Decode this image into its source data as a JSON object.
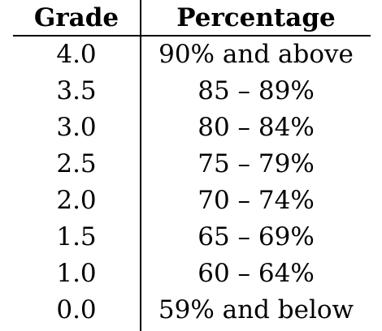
{
  "table": {
    "headers": {
      "grade": "Grade",
      "percentage": "Percentage"
    },
    "rows": [
      {
        "grade": "4.0",
        "percentage": "90% and above"
      },
      {
        "grade": "3.5",
        "percentage": "85 – 89%"
      },
      {
        "grade": "3.0",
        "percentage": "80 – 84%"
      },
      {
        "grade": "2.5",
        "percentage": "75 – 79%"
      },
      {
        "grade": "2.0",
        "percentage": "70 – 74%"
      },
      {
        "grade": "1.5",
        "percentage": "65 – 69%"
      },
      {
        "grade": "1.0",
        "percentage": "60 – 64%"
      },
      {
        "grade": "0.0",
        "percentage": "59% and below"
      }
    ]
  }
}
